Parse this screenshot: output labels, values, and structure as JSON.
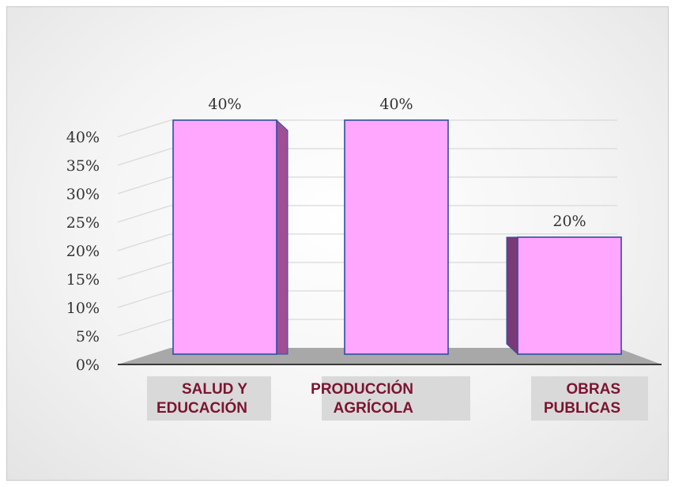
{
  "chart_data": {
    "type": "bar",
    "categories": [
      "SALUD Y EDUCACIÓN",
      "PRODUCCIÓN AGRÍCOLA",
      "OBRAS PUBLICAS"
    ],
    "category_lines": [
      [
        "SALUD Y",
        "EDUCACIÓN"
      ],
      [
        "PRODUCCIÓN",
        "AGRÍCOLA"
      ],
      [
        "OBRAS",
        "PUBLICAS"
      ]
    ],
    "values": [
      40,
      40,
      20
    ],
    "data_labels": [
      "40%",
      "40%",
      "20%"
    ],
    "ylim": [
      0,
      40
    ],
    "yticks": [
      "0%",
      "5%",
      "10%",
      "15%",
      "20%",
      "25%",
      "30%",
      "35%",
      "40%"
    ],
    "grid": true,
    "legend": "none",
    "title": "",
    "xlabel": "",
    "ylabel": "",
    "style": "3d-column"
  },
  "colors": {
    "bar_front": "#ffa6ff",
    "bar_side": "#9e4f97",
    "bar_edge": "#2f4f9e",
    "floor": "#a8a8a8",
    "gridline": "#d9d9d9",
    "category_text": "#7b1430",
    "category_bg": "#d9d9d9"
  }
}
